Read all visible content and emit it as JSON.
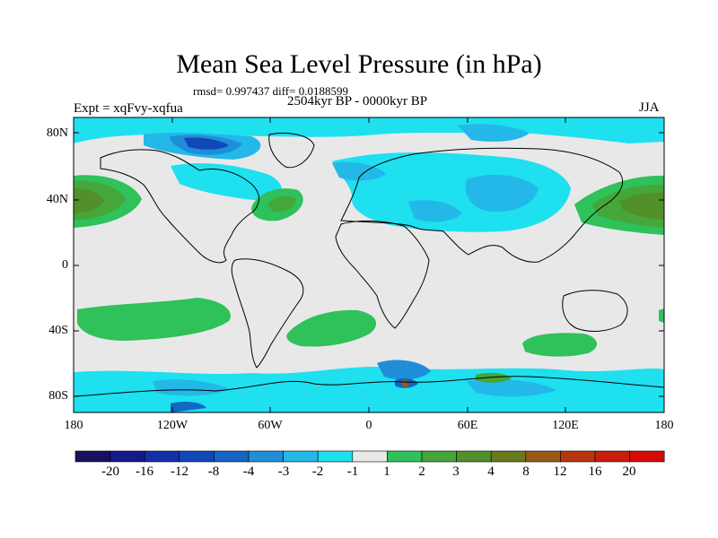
{
  "title": "Mean Sea Level Pressure (in hPa)",
  "stats": "rmsd= 0.997437 diff= 0.0188599",
  "experiment": "Expt = xqFvy-xqfua",
  "period": "2504kyr BP - 0000kyr BP",
  "season": "JJA",
  "axes": {
    "lat_labels": [
      "80N",
      "40N",
      "0",
      "40S",
      "80S"
    ],
    "lon_labels": [
      "180",
      "120W",
      "60W",
      "0",
      "60E",
      "120E",
      "180"
    ]
  },
  "colorbar": {
    "labels": [
      "-20",
      "-16",
      "-12",
      "-8",
      "-4",
      "-3",
      "-2",
      "-1",
      "1",
      "2",
      "3",
      "4",
      "8",
      "12",
      "16",
      "20"
    ],
    "colors": [
      "#1a1060",
      "#141a8a",
      "#1230a8",
      "#1048b8",
      "#1466c4",
      "#1f8ed8",
      "#23b8e8",
      "#1ee0ef",
      "#e8e8e8",
      "#2fc15a",
      "#45a63a",
      "#52902a",
      "#6a7a1e",
      "#965a16",
      "#b8360e",
      "#c81e0a",
      "#d80a06"
    ]
  }
}
